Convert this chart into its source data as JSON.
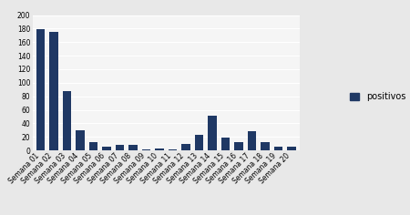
{
  "categories": [
    "Semana 01",
    "Semana 02",
    "Semana 03",
    "Semana 04",
    "Semana 05",
    "Semana 06",
    "Semana 07",
    "Semana 08",
    "Semana 09",
    "Semana 10",
    "Semana 11",
    "Semana 12",
    "Semana 13",
    "Semana 14",
    "Semana 15",
    "Semana 16",
    "Semana 17",
    "Semana 18",
    "Semana 19",
    "Semana 20"
  ],
  "values": [
    179,
    175,
    88,
    30,
    13,
    6,
    8,
    8,
    2,
    3,
    2,
    10,
    23,
    52,
    19,
    13,
    29,
    13,
    6,
    5
  ],
  "bar_color": "#1F3864",
  "ylim": [
    0,
    200
  ],
  "yticks": [
    0,
    20,
    40,
    60,
    80,
    100,
    120,
    140,
    160,
    180,
    200
  ],
  "legend_label": "positivos",
  "background_color": "#e8e8e8",
  "plot_background": "#f5f5f5",
  "grid_color": "#ffffff",
  "tick_fontsize": 5.5,
  "legend_fontsize": 7.0,
  "bar_width": 0.65
}
